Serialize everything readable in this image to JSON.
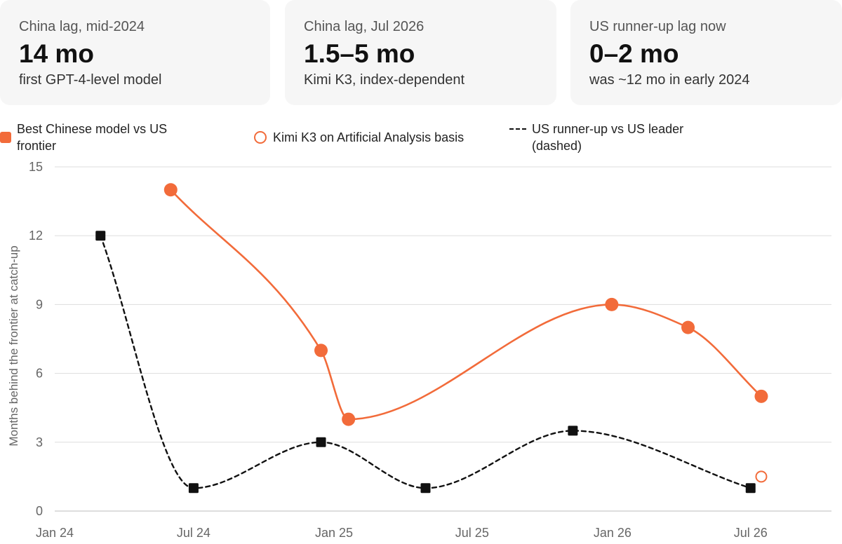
{
  "cards": [
    {
      "label": "China lag, mid-2024",
      "value": "14 mo",
      "note": "first GPT-4-level model"
    },
    {
      "label": "China lag, Jul 2026",
      "value": "1.5–5 mo",
      "note": "Kimi K3, index-dependent"
    },
    {
      "label": "US runner-up lag now",
      "value": "0–2 mo",
      "note": "was ~12 mo in early 2024"
    }
  ],
  "legend": {
    "china": {
      "label_line1": "Best Chinese model vs US",
      "label_line2": "frontier"
    },
    "kimi": {
      "label": "Kimi K3 on Artificial Analysis basis"
    },
    "us": {
      "label_line1": "US runner-up vs US leader",
      "label_line2": "(dashed)"
    }
  },
  "colors": {
    "china": "#f26b3a",
    "us": "#111111",
    "grid": "#dddddd",
    "card_bg": "#f6f6f6"
  },
  "chart_data": {
    "type": "line",
    "ylabel": "Months behind the frontier at catch-up",
    "xlabel": "",
    "ylim": [
      0,
      15
    ],
    "yticks": [
      0,
      3,
      6,
      9,
      12,
      15
    ],
    "xticks": [
      {
        "label": "Jan 24",
        "date": "2024-01-01"
      },
      {
        "label": "Jul 24",
        "date": "2024-07-01"
      },
      {
        "label": "Jan 25",
        "date": "2025-01-01"
      },
      {
        "label": "Jul 25",
        "date": "2025-07-01"
      },
      {
        "label": "Jan 26",
        "date": "2026-01-01"
      },
      {
        "label": "Jul 26",
        "date": "2026-07-01"
      }
    ],
    "xlim": [
      "2024-01-01",
      "2026-10-15"
    ],
    "grid": "horizontal",
    "series": [
      {
        "name": "Best Chinese model vs US frontier",
        "color": "#f26b3a",
        "marker": "circle",
        "dashed": false,
        "points": [
          {
            "date": "2024-06-01",
            "value": 14
          },
          {
            "date": "2024-12-15",
            "value": 7
          },
          {
            "date": "2025-01-20",
            "value": 4
          },
          {
            "date": "2025-12-31",
            "value": 9
          },
          {
            "date": "2026-04-10",
            "value": 8
          },
          {
            "date": "2026-07-15",
            "value": 5
          }
        ]
      },
      {
        "name": "US runner-up vs US leader (dashed)",
        "color": "#111111",
        "marker": "square",
        "dashed": true,
        "points": [
          {
            "date": "2024-03-01",
            "value": 12
          },
          {
            "date": "2024-07-01",
            "value": 1
          },
          {
            "date": "2024-12-15",
            "value": 3
          },
          {
            "date": "2025-05-01",
            "value": 1
          },
          {
            "date": "2025-11-10",
            "value": 3.5
          },
          {
            "date": "2026-07-01",
            "value": 1
          }
        ]
      },
      {
        "name": "Kimi K3 on Artificial Analysis basis",
        "color": "#f26b3a",
        "marker": "hollow-circle",
        "dashed": false,
        "points": [
          {
            "date": "2026-07-15",
            "value": 1.5
          }
        ]
      }
    ]
  }
}
